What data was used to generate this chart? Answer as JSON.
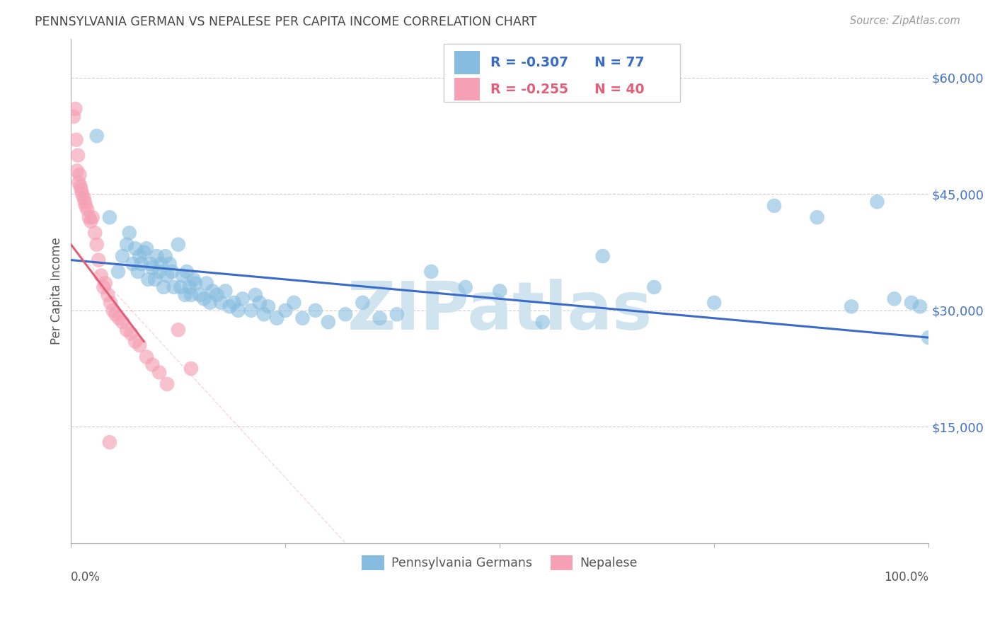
{
  "title": "PENNSYLVANIA GERMAN VS NEPALESE PER CAPITA INCOME CORRELATION CHART",
  "source": "Source: ZipAtlas.com",
  "ylabel": "Per Capita Income",
  "yticks": [
    0,
    15000,
    30000,
    45000,
    60000
  ],
  "ytick_labels": [
    "",
    "$15,000",
    "$30,000",
    "$45,000",
    "$60,000"
  ],
  "ylim": [
    0,
    65000
  ],
  "xlim": [
    0.0,
    1.0
  ],
  "legend_blue_r": "-0.307",
  "legend_blue_n": "77",
  "legend_pink_r": "-0.255",
  "legend_pink_n": "40",
  "legend_label_blue": "Pennsylvania Germans",
  "legend_label_pink": "Nepalese",
  "blue_color": "#85BCDF",
  "pink_color": "#F5A0B5",
  "blue_line_color": "#3A6CC6",
  "pink_line_color": "#E0607A",
  "background_color": "#FFFFFF",
  "grid_color": "#CCCCCC",
  "title_color": "#444444",
  "axis_label_color": "#555555",
  "ytick_color": "#4472C4",
  "watermark_color": "#D0E4F0",
  "blue_scatter_x": [
    0.03,
    0.045,
    0.055,
    0.06,
    0.065,
    0.068,
    0.072,
    0.075,
    0.078,
    0.08,
    0.082,
    0.085,
    0.088,
    0.09,
    0.093,
    0.095,
    0.098,
    0.1,
    0.103,
    0.105,
    0.108,
    0.11,
    0.112,
    0.115,
    0.118,
    0.12,
    0.125,
    0.128,
    0.13,
    0.133,
    0.135,
    0.138,
    0.14,
    0.143,
    0.145,
    0.15,
    0.155,
    0.158,
    0.162,
    0.165,
    0.17,
    0.175,
    0.18,
    0.185,
    0.19,
    0.195,
    0.2,
    0.21,
    0.215,
    0.22,
    0.225,
    0.23,
    0.24,
    0.25,
    0.26,
    0.27,
    0.285,
    0.3,
    0.32,
    0.34,
    0.36,
    0.38,
    0.42,
    0.46,
    0.5,
    0.55,
    0.62,
    0.68,
    0.75,
    0.82,
    0.87,
    0.91,
    0.94,
    0.96,
    0.98,
    0.99,
    1.0
  ],
  "blue_scatter_y": [
    52500,
    42000,
    35000,
    37000,
    38500,
    40000,
    36000,
    38000,
    35000,
    37000,
    36000,
    37500,
    38000,
    34000,
    36000,
    35500,
    34000,
    37000,
    35000,
    36000,
    33000,
    37000,
    34500,
    36000,
    35000,
    33000,
    38500,
    33000,
    34500,
    32000,
    35000,
    33000,
    32000,
    34000,
    33500,
    32000,
    31500,
    33500,
    31000,
    32500,
    32000,
    31000,
    32500,
    30500,
    31000,
    30000,
    31500,
    30000,
    32000,
    31000,
    29500,
    30500,
    29000,
    30000,
    31000,
    29000,
    30000,
    28500,
    29500,
    31000,
    29000,
    29500,
    35000,
    33000,
    32500,
    28500,
    37000,
    33000,
    31000,
    43500,
    42000,
    30500,
    44000,
    31500,
    31000,
    30500,
    26500
  ],
  "pink_scatter_x": [
    0.003,
    0.006,
    0.008,
    0.01,
    0.011,
    0.013,
    0.015,
    0.017,
    0.019,
    0.021,
    0.023,
    0.025,
    0.028,
    0.03,
    0.032,
    0.035,
    0.038,
    0.04,
    0.043,
    0.046,
    0.049,
    0.052,
    0.056,
    0.06,
    0.065,
    0.07,
    0.075,
    0.08,
    0.088,
    0.095,
    0.103,
    0.112,
    0.125,
    0.14,
    0.005,
    0.007,
    0.009,
    0.012,
    0.016,
    0.045
  ],
  "pink_scatter_y": [
    55000,
    52000,
    50000,
    47500,
    46000,
    45000,
    44500,
    43500,
    43000,
    42000,
    41500,
    42000,
    40000,
    38500,
    36500,
    34500,
    33000,
    33500,
    32000,
    31000,
    30000,
    29500,
    29000,
    28500,
    27500,
    27000,
    26000,
    25500,
    24000,
    23000,
    22000,
    20500,
    27500,
    22500,
    56000,
    48000,
    46500,
    45500,
    44000,
    13000
  ],
  "blue_trend_x0": 0.0,
  "blue_trend_x1": 1.0,
  "blue_trend_y0": 36500,
  "blue_trend_y1": 26500,
  "pink_trend_solid_x0": 0.0,
  "pink_trend_solid_x1": 0.085,
  "pink_trend_solid_y0": 38500,
  "pink_trend_solid_y1": 26000,
  "pink_trend_dash_x0": 0.0,
  "pink_trend_dash_x1": 0.32,
  "pink_trend_dash_y0": 38500,
  "pink_trend_dash_y1": 0
}
